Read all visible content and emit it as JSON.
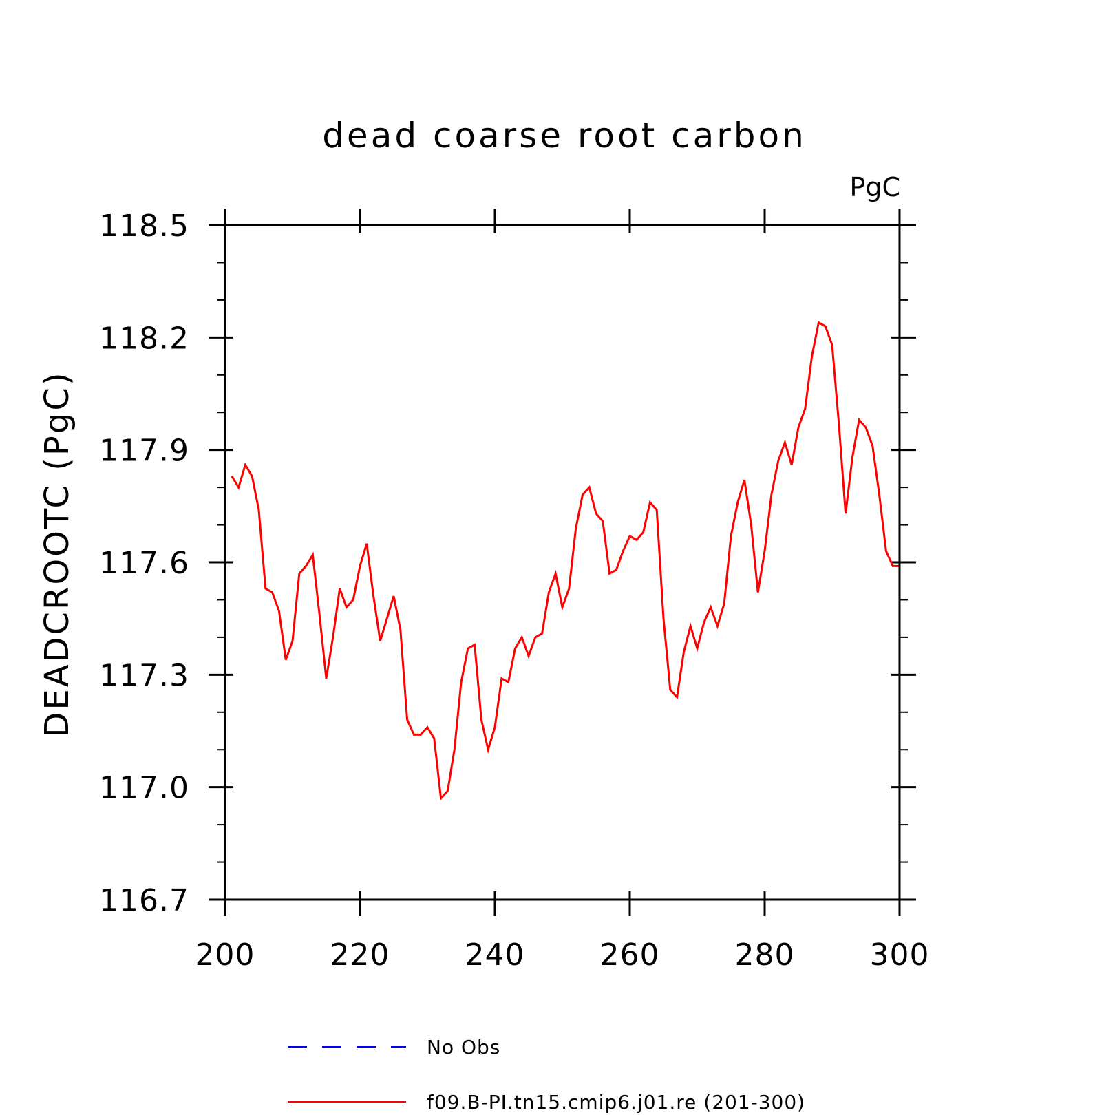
{
  "chart_data": {
    "type": "line",
    "title": "dead coarse root carbon",
    "units": "PgC",
    "ylabel": "DEADCROOTC  (PgC)",
    "xlabel": "",
    "xlim": [
      200,
      300
    ],
    "ylim": [
      116.7,
      118.5
    ],
    "x_ticks": [
      "200",
      "220",
      "240",
      "260",
      "280",
      "300"
    ],
    "y_ticks": [
      "116.7",
      "117.0",
      "117.3",
      "117.6",
      "117.9",
      "118.2",
      "118.5"
    ],
    "x_major_step": 20,
    "y_major_step": 0.3,
    "y_minor_step": 0.1,
    "grid": false,
    "legend_position": "bottom",
    "series": [
      {
        "name": "No Obs",
        "color": "#0000ff",
        "dash": "dashed",
        "x": [],
        "y": []
      },
      {
        "name": "f09.B-PI.tn15.cmip6.j01.re (201-300)",
        "color": "#ff0000",
        "dash": "solid",
        "x": [
          201,
          202,
          203,
          204,
          205,
          206,
          207,
          208,
          209,
          210,
          211,
          212,
          213,
          214,
          215,
          216,
          217,
          218,
          219,
          220,
          221,
          222,
          223,
          224,
          225,
          226,
          227,
          228,
          229,
          230,
          231,
          232,
          233,
          234,
          235,
          236,
          237,
          238,
          239,
          240,
          241,
          242,
          243,
          244,
          245,
          246,
          247,
          248,
          249,
          250,
          251,
          252,
          253,
          254,
          255,
          256,
          257,
          258,
          259,
          260,
          261,
          262,
          263,
          264,
          265,
          266,
          267,
          268,
          269,
          270,
          271,
          272,
          273,
          274,
          275,
          276,
          277,
          278,
          279,
          280,
          281,
          282,
          283,
          284,
          285,
          286,
          287,
          288,
          289,
          290,
          291,
          292,
          293,
          294,
          295,
          296,
          297,
          298,
          299,
          300
        ],
        "y": [
          117.83,
          117.8,
          117.86,
          117.83,
          117.74,
          117.53,
          117.52,
          117.47,
          117.34,
          117.39,
          117.57,
          117.59,
          117.62,
          117.46,
          117.29,
          117.4,
          117.53,
          117.48,
          117.5,
          117.59,
          117.65,
          117.51,
          117.39,
          117.45,
          117.51,
          117.42,
          117.18,
          117.14,
          117.14,
          117.16,
          117.13,
          116.97,
          116.99,
          117.1,
          117.28,
          117.37,
          117.38,
          117.18,
          117.1,
          117.16,
          117.29,
          117.28,
          117.37,
          117.4,
          117.35,
          117.4,
          117.41,
          117.52,
          117.57,
          117.48,
          117.53,
          117.69,
          117.78,
          117.8,
          117.73,
          117.71,
          117.57,
          117.58,
          117.63,
          117.67,
          117.66,
          117.68,
          117.76,
          117.74,
          117.45,
          117.26,
          117.24,
          117.36,
          117.43,
          117.37,
          117.44,
          117.48,
          117.43,
          117.49,
          117.67,
          117.76,
          117.82,
          117.7,
          117.52,
          117.63,
          117.78,
          117.87,
          117.92,
          117.86,
          117.96,
          118.01,
          118.15,
          118.24,
          118.23,
          118.18,
          117.97,
          117.73,
          117.88,
          117.98,
          117.96,
          117.91,
          117.78,
          117.63,
          117.59,
          117.59
        ]
      }
    ]
  }
}
